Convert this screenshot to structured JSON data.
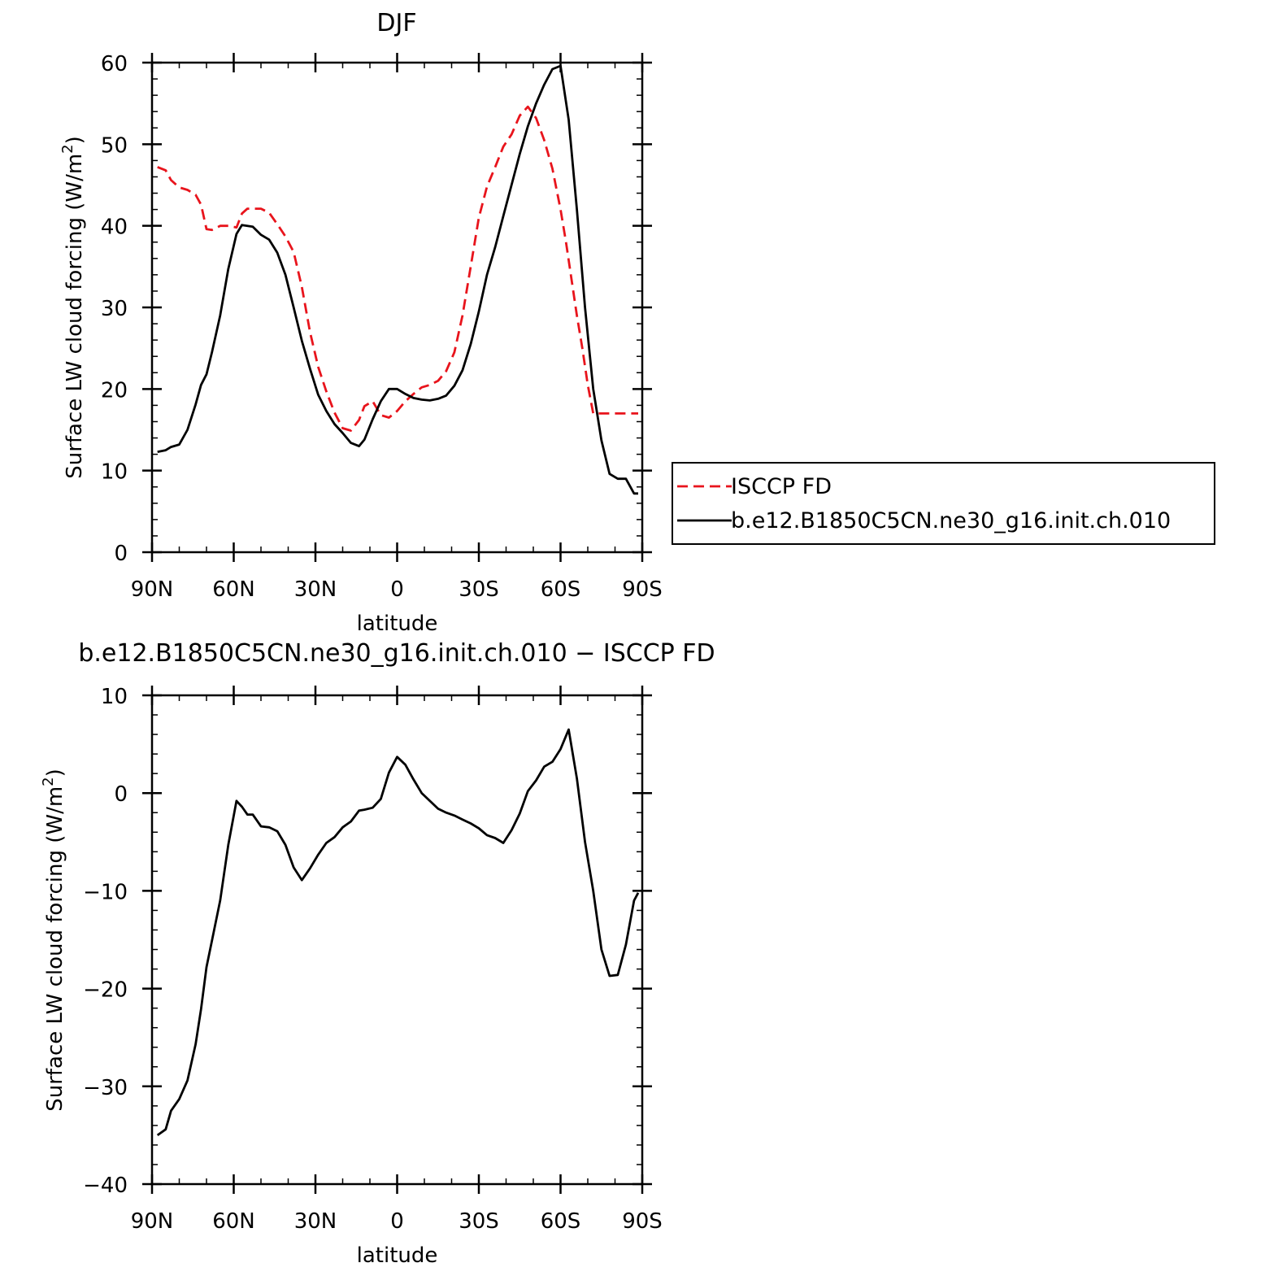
{
  "chart_data": [
    {
      "type": "line",
      "title": "DJF",
      "xlabel": "latitude",
      "ylabel_main": "Surface LW cloud forcing (W/m",
      "ylabel_sup": "2",
      "ylabel_close": ")",
      "xlim": [
        90,
        -90
      ],
      "ylim": [
        0,
        60
      ],
      "x_ticks": [
        {
          "value": 90,
          "label": "90N"
        },
        {
          "value": 60,
          "label": "60N"
        },
        {
          "value": 30,
          "label": "30N"
        },
        {
          "value": 0,
          "label": "0"
        },
        {
          "value": -30,
          "label": "30S"
        },
        {
          "value": -60,
          "label": "60S"
        },
        {
          "value": -90,
          "label": "90S"
        }
      ],
      "y_ticks": [
        {
          "value": 0,
          "label": "0"
        },
        {
          "value": 10,
          "label": "10"
        },
        {
          "value": 20,
          "label": "20"
        },
        {
          "value": 30,
          "label": "30"
        },
        {
          "value": 40,
          "label": "40"
        },
        {
          "value": 50,
          "label": "50"
        },
        {
          "value": 60,
          "label": "60"
        }
      ],
      "legend_position": "right",
      "series": [
        {
          "name": "ISCCP FD",
          "color": "#e8141c",
          "dash": "dashed",
          "x": [
            88,
            85,
            83,
            80,
            77,
            74,
            72,
            70,
            68,
            65,
            62,
            59,
            57,
            55,
            53,
            50,
            47,
            44,
            41,
            38,
            35,
            32,
            29,
            26,
            23,
            20,
            17,
            14,
            12,
            9,
            6,
            3,
            0,
            -3,
            -6,
            -9,
            -12,
            -15,
            -18,
            -21,
            -24,
            -27,
            -30,
            -33,
            -36,
            -39,
            -42,
            -45,
            -48,
            -51,
            -54,
            -57,
            -60,
            -62,
            -64,
            -66,
            -68,
            -70,
            -72,
            -75,
            -78,
            -81,
            -84,
            -87,
            -88.5
          ],
          "y": [
            47.2,
            46.8,
            45.6,
            44.7,
            44.4,
            43.8,
            42.6,
            39.6,
            39.5,
            40.0,
            40.0,
            39.8,
            41.5,
            42.1,
            42.1,
            42.1,
            41.6,
            40.2,
            38.7,
            36.8,
            32.5,
            27.0,
            22.7,
            19.7,
            17.1,
            15.2,
            14.9,
            16.2,
            17.9,
            18.5,
            16.8,
            16.5,
            17.3,
            18.5,
            19.4,
            20.2,
            20.5,
            21.0,
            22.2,
            24.5,
            29.0,
            35.0,
            41.0,
            44.8,
            47.2,
            49.7,
            51.2,
            53.5,
            54.6,
            53.2,
            50.5,
            47.0,
            42.0,
            38.0,
            33.5,
            29.0,
            25.0,
            20.5,
            17.0,
            17.0,
            17.0,
            17.0,
            17.0,
            17.0,
            17.0
          ]
        },
        {
          "name": "b.e12.B1850C5CN.ne30_g16.init.ch.010",
          "color": "#000000",
          "dash": "solid",
          "x": [
            88,
            85,
            83,
            80,
            77,
            74,
            72,
            70,
            68,
            65,
            62,
            59,
            57,
            55,
            53,
            50,
            47,
            44,
            41,
            38,
            35,
            32,
            29,
            26,
            23,
            20,
            17,
            14,
            12,
            9,
            6,
            3,
            0,
            -3,
            -6,
            -9,
            -12,
            -15,
            -18,
            -21,
            -24,
            -27,
            -30,
            -33,
            -36,
            -39,
            -42,
            -45,
            -48,
            -51,
            -54,
            -57,
            -60,
            -63,
            -66,
            -69,
            -72,
            -75,
            -78,
            -81,
            -84,
            -87,
            -88.5
          ],
          "y": [
            12.3,
            12.5,
            12.9,
            13.2,
            15.0,
            18.1,
            20.5,
            21.8,
            24.5,
            29.0,
            34.7,
            39.0,
            40.1,
            40.0,
            39.9,
            38.9,
            38.3,
            36.7,
            34.0,
            30.0,
            25.9,
            22.5,
            19.3,
            17.3,
            15.7,
            14.6,
            13.4,
            13.0,
            13.8,
            16.3,
            18.5,
            20.0,
            20.0,
            19.4,
            18.9,
            18.7,
            18.6,
            18.8,
            19.2,
            20.4,
            22.3,
            25.5,
            29.5,
            34.0,
            37.4,
            41.2,
            45.0,
            48.8,
            52.2,
            55.0,
            57.3,
            59.2,
            59.6,
            53.0,
            42.0,
            30.0,
            20.0,
            13.7,
            9.6,
            9.0,
            9.0,
            7.2,
            7.2
          ]
        }
      ]
    },
    {
      "type": "line",
      "title": "b.e12.B1850C5CN.ne30_g16.init.ch.010 − ISCCP FD",
      "xlabel": "latitude",
      "ylabel_main": "Surface LW cloud forcing (W/m",
      "ylabel_sup": "2",
      "ylabel_close": ")",
      "xlim": [
        90,
        -90
      ],
      "ylim": [
        -40,
        10
      ],
      "x_ticks": [
        {
          "value": 90,
          "label": "90N"
        },
        {
          "value": 60,
          "label": "60N"
        },
        {
          "value": 30,
          "label": "30N"
        },
        {
          "value": 0,
          "label": "0"
        },
        {
          "value": -30,
          "label": "30S"
        },
        {
          "value": -60,
          "label": "60S"
        },
        {
          "value": -90,
          "label": "90S"
        }
      ],
      "y_ticks": [
        {
          "value": -40,
          "label": "−40"
        },
        {
          "value": -30,
          "label": "−30"
        },
        {
          "value": -20,
          "label": "−20"
        },
        {
          "value": -10,
          "label": "−10"
        },
        {
          "value": 0,
          "label": "0"
        },
        {
          "value": 10,
          "label": "10"
        }
      ],
      "series": [
        {
          "name": "",
          "color": "#000000",
          "dash": "solid",
          "x": [
            88,
            85,
            83,
            80,
            77,
            74,
            72,
            70,
            68,
            65,
            62,
            59,
            57,
            55,
            53,
            50,
            47,
            44,
            41,
            38,
            35,
            32,
            29,
            26,
            23,
            20,
            17,
            14,
            12,
            9,
            6,
            3,
            0,
            -3,
            -6,
            -9,
            -12,
            -15,
            -18,
            -21,
            -24,
            -27,
            -30,
            -33,
            -36,
            -39,
            -42,
            -45,
            -48,
            -51,
            -54,
            -57,
            -60,
            -63,
            -66,
            -69,
            -72,
            -75,
            -78,
            -81,
            -84,
            -87,
            -88.5
          ],
          "y": [
            -35.0,
            -34.4,
            -32.5,
            -31.3,
            -29.4,
            -25.7,
            -22.1,
            -17.8,
            -15.1,
            -11.0,
            -5.3,
            -0.8,
            -1.4,
            -2.2,
            -2.2,
            -3.4,
            -3.5,
            -3.9,
            -5.3,
            -7.6,
            -8.9,
            -7.7,
            -6.3,
            -5.1,
            -4.5,
            -3.5,
            -2.9,
            -1.8,
            -1.7,
            -1.5,
            -0.6,
            2.1,
            3.7,
            2.9,
            1.4,
            0.0,
            -0.8,
            -1.6,
            -2.0,
            -2.3,
            -2.7,
            -3.1,
            -3.6,
            -4.3,
            -4.6,
            -5.1,
            -3.8,
            -2.1,
            0.2,
            1.3,
            2.7,
            3.2,
            4.5,
            6.5,
            1.5,
            -5.0,
            -10.0,
            -16.0,
            -18.7,
            -18.6,
            -15.5,
            -11.0,
            -10.2
          ]
        }
      ]
    }
  ]
}
